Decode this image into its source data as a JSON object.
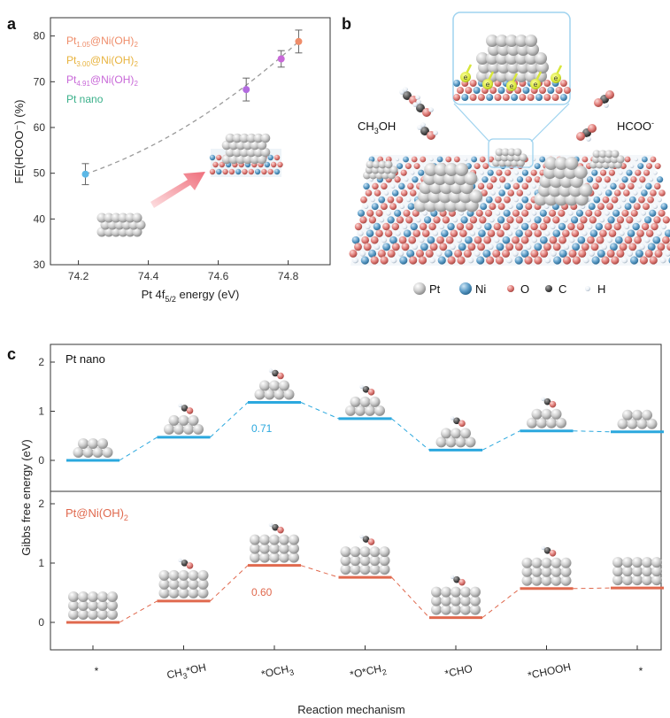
{
  "panel_labels": {
    "a": "a",
    "b": "b",
    "c": "c"
  },
  "colors": {
    "pt105": "#ef8d6a",
    "pt300": "#e8b33e",
    "pt491": "#c868d8",
    "ptnano": "#3ab08a",
    "pt_atom": "#c9c9c9",
    "ni_atom": "#5c9cc7",
    "o_atom": "#e07c78",
    "c_atom": "#555555",
    "h_atom": "#e8eef5",
    "line_nano": "#2ba8de",
    "line_ni": "#e0694e"
  },
  "chart_data": [
    {
      "type": "scatter",
      "panel": "a",
      "xlabel": {
        "main": "Pt 4f",
        "sub": "5/2",
        "tail": " energy (eV)"
      },
      "ylabel": "FE(HCOO⁻) (%)",
      "xlim": [
        74.12,
        74.92
      ],
      "ylim": [
        30,
        84
      ],
      "xticks": [
        "74.2",
        "74.4",
        "74.6",
        "74.8"
      ],
      "yticks": [
        "30",
        "40",
        "50",
        "60",
        "70",
        "80"
      ],
      "legend_position": "top-left",
      "legend": [
        {
          "main": "Pt",
          "sub": "1.05",
          "tail": "@Ni(OH)",
          "tailsub": "2",
          "color": "#ef8d6a"
        },
        {
          "main": "Pt",
          "sub": "3.00",
          "tail": "@Ni(OH)",
          "tailsub": "2",
          "color": "#e8b33e"
        },
        {
          "main": "Pt",
          "sub": "4.91",
          "tail": "@Ni(OH)",
          "tailsub": "2",
          "color": "#c868d8"
        },
        {
          "main": "Pt nano",
          "sub": "",
          "tail": "",
          "tailsub": "",
          "color": "#3ab08a"
        }
      ],
      "points": [
        {
          "x": 74.22,
          "y": 49.8,
          "err": 2.3,
          "color": "#5db8e6"
        },
        {
          "x": 74.68,
          "y": 68.3,
          "err": 2.5,
          "color": "#b36be0"
        },
        {
          "x": 74.78,
          "y": 75.0,
          "err": 1.8,
          "color": "#c868d8"
        },
        {
          "x": 74.83,
          "y": 78.8,
          "err": 2.5,
          "color": "#ef8d6a"
        }
      ]
    },
    {
      "type": "line",
      "panel": "c",
      "ylabel": "Gibbs free energy (eV)",
      "xlabel": "Reaction mechanism",
      "yticks": [
        "0",
        "1",
        "2"
      ],
      "ylim_each": [
        -0.3,
        2.3
      ],
      "categories": [
        {
          "main": "*",
          "sub": "",
          "tail": ""
        },
        {
          "main": "CH",
          "sub": "3",
          "tail": "*OH"
        },
        {
          "main": "*OCH",
          "sub": "3",
          "tail": ""
        },
        {
          "main": "*O*CH",
          "sub": "2",
          "tail": ""
        },
        {
          "main": "*CHO",
          "sub": "",
          "tail": ""
        },
        {
          "main": "*CHOOH",
          "sub": "",
          "tail": ""
        },
        {
          "main": "*",
          "sub": "",
          "tail": ""
        }
      ],
      "series": [
        {
          "name": "Pt nano",
          "name_sub": "",
          "color": "#2ba8de",
          "values": [
            0.0,
            0.47,
            1.18,
            0.85,
            0.21,
            0.6,
            0.58
          ],
          "annotation": {
            "text": "0.71",
            "at_step": 1
          }
        },
        {
          "name": "Pt@Ni(OH)",
          "name_sub": "2",
          "color": "#e0694e",
          "values": [
            0.0,
            0.36,
            0.96,
            0.76,
            0.08,
            0.57,
            0.58
          ],
          "annotation": {
            "text": "0.60",
            "at_step": 1
          }
        }
      ]
    }
  ],
  "panel_b": {
    "left_label": {
      "main": "CH",
      "sub": "3",
      "tail": "OH"
    },
    "right_label": {
      "main": "HCOO",
      "sup": "-"
    },
    "electron_label": "e",
    "atom_legend": [
      {
        "label": "Pt",
        "color": "#c9c9c9"
      },
      {
        "label": "Ni",
        "color": "#5c9cc7"
      },
      {
        "label": "O",
        "color": "#e07c78"
      },
      {
        "label": "C",
        "color": "#555555"
      },
      {
        "label": "H",
        "color": "#e8eef5"
      }
    ]
  }
}
